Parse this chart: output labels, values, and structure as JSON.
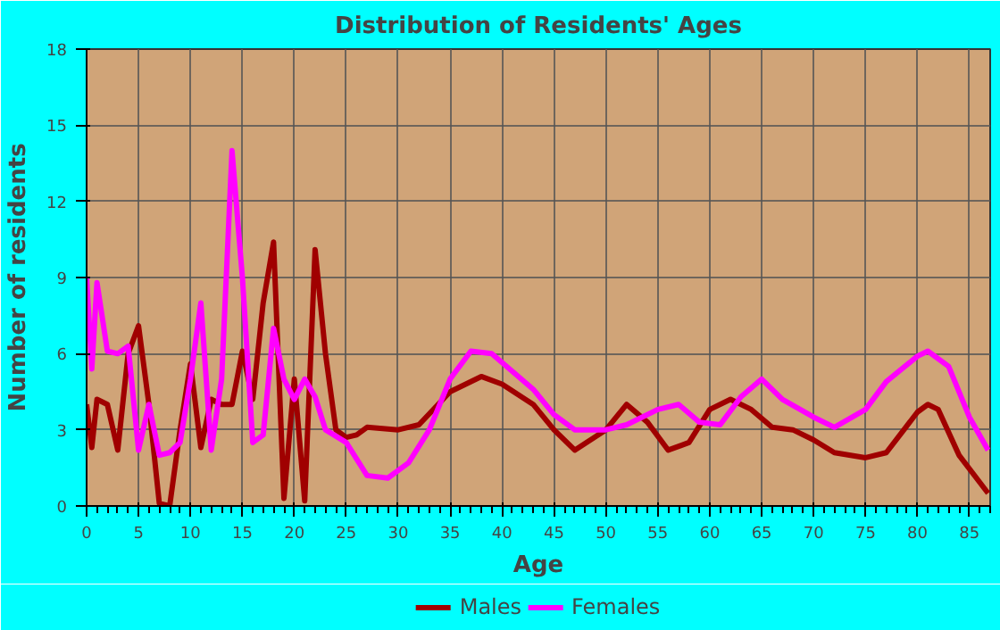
{
  "chart_data": {
    "type": "line",
    "title": "Distribution of Residents' Ages",
    "xlabel": "Age",
    "ylabel": "Number of residents",
    "xlim": [
      0,
      87
    ],
    "xticks": [
      0,
      5,
      10,
      15,
      20,
      25,
      30,
      35,
      40,
      45,
      50,
      55,
      60,
      65,
      70,
      75,
      80,
      85
    ],
    "ylim": [
      0,
      18
    ],
    "yticks": [
      0,
      3,
      6,
      9,
      12,
      15,
      18
    ],
    "grid": true,
    "legend": "bottom",
    "line_style": "solid",
    "marker": "none",
    "series": [
      {
        "name": "Males",
        "color": "#a00000",
        "x": [
          0,
          0.5,
          1,
          2,
          3,
          4,
          5,
          6,
          7,
          8,
          9,
          10,
          11,
          12,
          13,
          14,
          15,
          16,
          17,
          18,
          19,
          20,
          21,
          22,
          23,
          24,
          25,
          26,
          27,
          30,
          32,
          35,
          38,
          40,
          43,
          45,
          47,
          50,
          52,
          54,
          56,
          58,
          60,
          62,
          64,
          66,
          68,
          70,
          72,
          75,
          77,
          80,
          81,
          82,
          84,
          86.8
        ],
        "values": [
          4,
          2.3,
          4.2,
          4,
          2.2,
          6,
          7.1,
          4,
          0.1,
          0,
          3,
          5.6,
          2.3,
          4.2,
          4,
          4,
          6.1,
          4.2,
          8,
          10.4,
          0.3,
          5,
          0.2,
          10.1,
          6,
          3,
          2.7,
          2.8,
          3.1,
          3,
          3.2,
          4.5,
          5.1,
          4.8,
          4,
          3,
          2.2,
          3,
          4,
          3.3,
          2.2,
          2.5,
          3.8,
          4.2,
          3.8,
          3.1,
          3,
          2.6,
          2.1,
          1.9,
          2.1,
          3.7,
          4,
          3.8,
          2,
          0.5
        ]
      },
      {
        "name": "Females",
        "color": "#ff00ff",
        "x": [
          0,
          0.5,
          1,
          2,
          3,
          4,
          5,
          6,
          7,
          8,
          9,
          10,
          11,
          12,
          13,
          14,
          15,
          16,
          17,
          18,
          19,
          20,
          21,
          22,
          23,
          25,
          27,
          29,
          31,
          33,
          35,
          37,
          39,
          41,
          43,
          45,
          47,
          50,
          52,
          55,
          57,
          59,
          61,
          63,
          65,
          67,
          70,
          72,
          75,
          77,
          80,
          81,
          83,
          85,
          86.8
        ],
        "values": [
          9,
          5.4,
          8.8,
          6.1,
          6,
          6.3,
          2.2,
          4,
          2,
          2.1,
          2.5,
          5,
          8,
          2.2,
          5,
          14,
          9,
          2.5,
          2.8,
          7,
          5,
          4.2,
          5,
          4.3,
          3,
          2.5,
          1.2,
          1.1,
          1.7,
          3,
          5,
          6.1,
          6,
          5.3,
          4.6,
          3.6,
          3,
          3,
          3.2,
          3.8,
          4,
          3.3,
          3.2,
          4.3,
          5,
          4.2,
          3.5,
          3.1,
          3.8,
          4.9,
          5.9,
          6.1,
          5.5,
          3.5,
          2.2
        ]
      }
    ]
  }
}
